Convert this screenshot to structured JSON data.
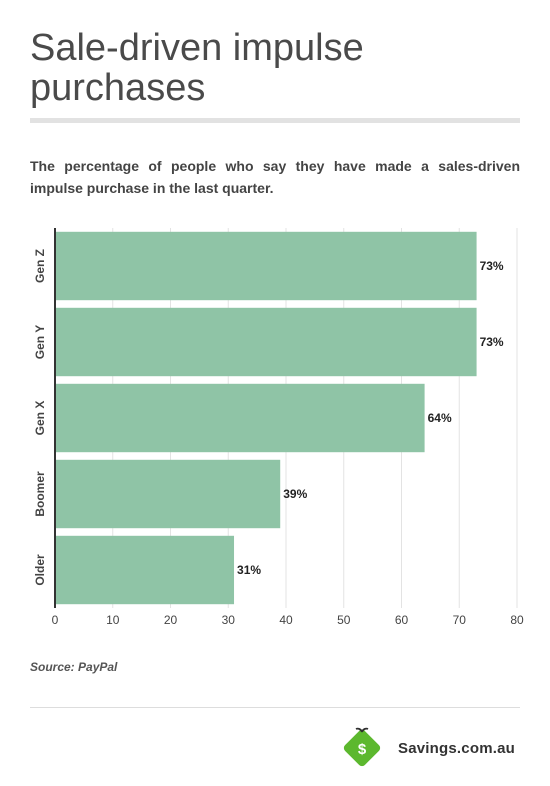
{
  "header": {
    "title": "Sale-driven impulse purchases",
    "subtitle": "The percentage of people who say they have made a sales-driven impulse purchase in the last quarter."
  },
  "chart_data": {
    "type": "bar",
    "orientation": "horizontal",
    "categories": [
      "Gen Z",
      "Gen Y",
      "Gen X",
      "Boomer",
      "Older"
    ],
    "values": [
      73,
      73,
      64,
      39,
      31
    ],
    "value_labels": [
      "73%",
      "73%",
      "64%",
      "39%",
      "31%"
    ],
    "xlim": [
      0,
      80
    ],
    "xticks": [
      0,
      10,
      20,
      30,
      40,
      50,
      60,
      70,
      80
    ],
    "grid": true,
    "bar_color": "#8fc4a6"
  },
  "footer": {
    "source": "Source: PayPal",
    "brand": "Savings.com.au",
    "brand_color": "#5cb82e",
    "logo_letter": "$"
  }
}
